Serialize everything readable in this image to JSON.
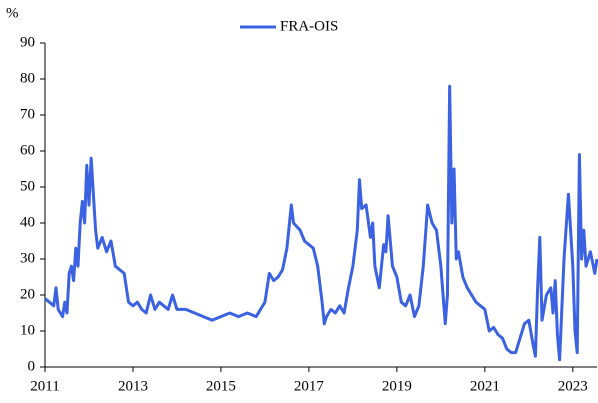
{
  "chart_data": {
    "type": "line",
    "y_unit": "%",
    "x": [
      2011.0,
      2011.1,
      2011.2,
      2011.25,
      2011.3,
      2011.4,
      2011.45,
      2011.5,
      2011.55,
      2011.6,
      2011.65,
      2011.7,
      2011.75,
      2011.8,
      2011.85,
      2011.9,
      2011.95,
      2012.0,
      2012.05,
      2012.1,
      2012.15,
      2012.2,
      2012.3,
      2012.4,
      2012.5,
      2012.6,
      2012.7,
      2012.8,
      2012.9,
      2013.0,
      2013.1,
      2013.2,
      2013.3,
      2013.4,
      2013.5,
      2013.6,
      2013.7,
      2013.8,
      2013.9,
      2014.0,
      2014.2,
      2014.4,
      2014.6,
      2014.8,
      2015.0,
      2015.2,
      2015.4,
      2015.6,
      2015.8,
      2016.0,
      2016.1,
      2016.2,
      2016.3,
      2016.4,
      2016.5,
      2016.6,
      2016.65,
      2016.8,
      2016.9,
      2017.0,
      2017.1,
      2017.2,
      2017.3,
      2017.35,
      2017.4,
      2017.5,
      2017.6,
      2017.7,
      2017.8,
      2017.9,
      2018.0,
      2018.1,
      2018.15,
      2018.2,
      2018.3,
      2018.4,
      2018.45,
      2018.5,
      2018.6,
      2018.7,
      2018.75,
      2018.8,
      2018.9,
      2019.0,
      2019.1,
      2019.2,
      2019.3,
      2019.4,
      2019.5,
      2019.6,
      2019.7,
      2019.8,
      2019.9,
      2020.0,
      2020.1,
      2020.15,
      2020.2,
      2020.25,
      2020.3,
      2020.35,
      2020.4,
      2020.5,
      2020.6,
      2020.7,
      2020.8,
      2020.9,
      2021.0,
      2021.1,
      2021.2,
      2021.3,
      2021.4,
      2021.5,
      2021.6,
      2021.7,
      2021.8,
      2021.9,
      2022.0,
      2022.1,
      2022.15,
      2022.2,
      2022.25,
      2022.3,
      2022.4,
      2022.5,
      2022.55,
      2022.6,
      2022.65,
      2022.7,
      2022.8,
      2022.9,
      2023.0,
      2023.05,
      2023.1,
      2023.15,
      2023.2,
      2023.25,
      2023.3,
      2023.4,
      2023.5,
      2023.55
    ],
    "series": [
      {
        "name": "FRA-OIS",
        "color": "#3b62e0",
        "values": [
          19,
          18,
          17,
          22,
          16,
          14,
          18,
          15,
          26,
          28,
          24,
          33,
          28,
          40,
          46,
          40,
          56,
          45,
          58,
          48,
          38,
          33,
          36,
          32,
          35,
          28,
          27,
          26,
          18,
          17,
          18,
          16,
          15,
          20,
          16,
          18,
          17,
          16,
          20,
          16,
          16,
          15,
          14,
          13,
          14,
          15,
          14,
          15,
          14,
          18,
          26,
          24,
          25,
          27,
          33,
          45,
          40,
          38,
          35,
          34,
          33,
          28,
          18,
          12,
          14,
          16,
          15,
          17,
          15,
          22,
          28,
          38,
          52,
          44,
          45,
          36,
          40,
          28,
          22,
          34,
          32,
          42,
          28,
          25,
          18,
          17,
          20,
          14,
          17,
          28,
          45,
          40,
          38,
          28,
          12,
          20,
          78,
          40,
          55,
          30,
          32,
          25,
          22,
          20,
          18,
          17,
          16,
          10,
          11,
          9,
          8,
          5,
          4,
          4,
          8,
          12,
          13,
          6,
          3,
          22,
          36,
          13,
          20,
          22,
          15,
          24,
          9,
          2,
          30,
          48,
          28,
          10,
          4,
          59,
          30,
          38,
          28,
          32,
          26,
          30
        ]
      }
    ],
    "xlim": [
      2011,
      2023.55
    ],
    "xticks": [
      2011,
      2013,
      2015,
      2017,
      2019,
      2021,
      2023
    ],
    "ylim": [
      0,
      90
    ],
    "yticks": [
      0,
      10,
      20,
      30,
      40,
      50,
      60,
      70,
      80,
      90
    ],
    "grid": false,
    "legend": "top"
  }
}
